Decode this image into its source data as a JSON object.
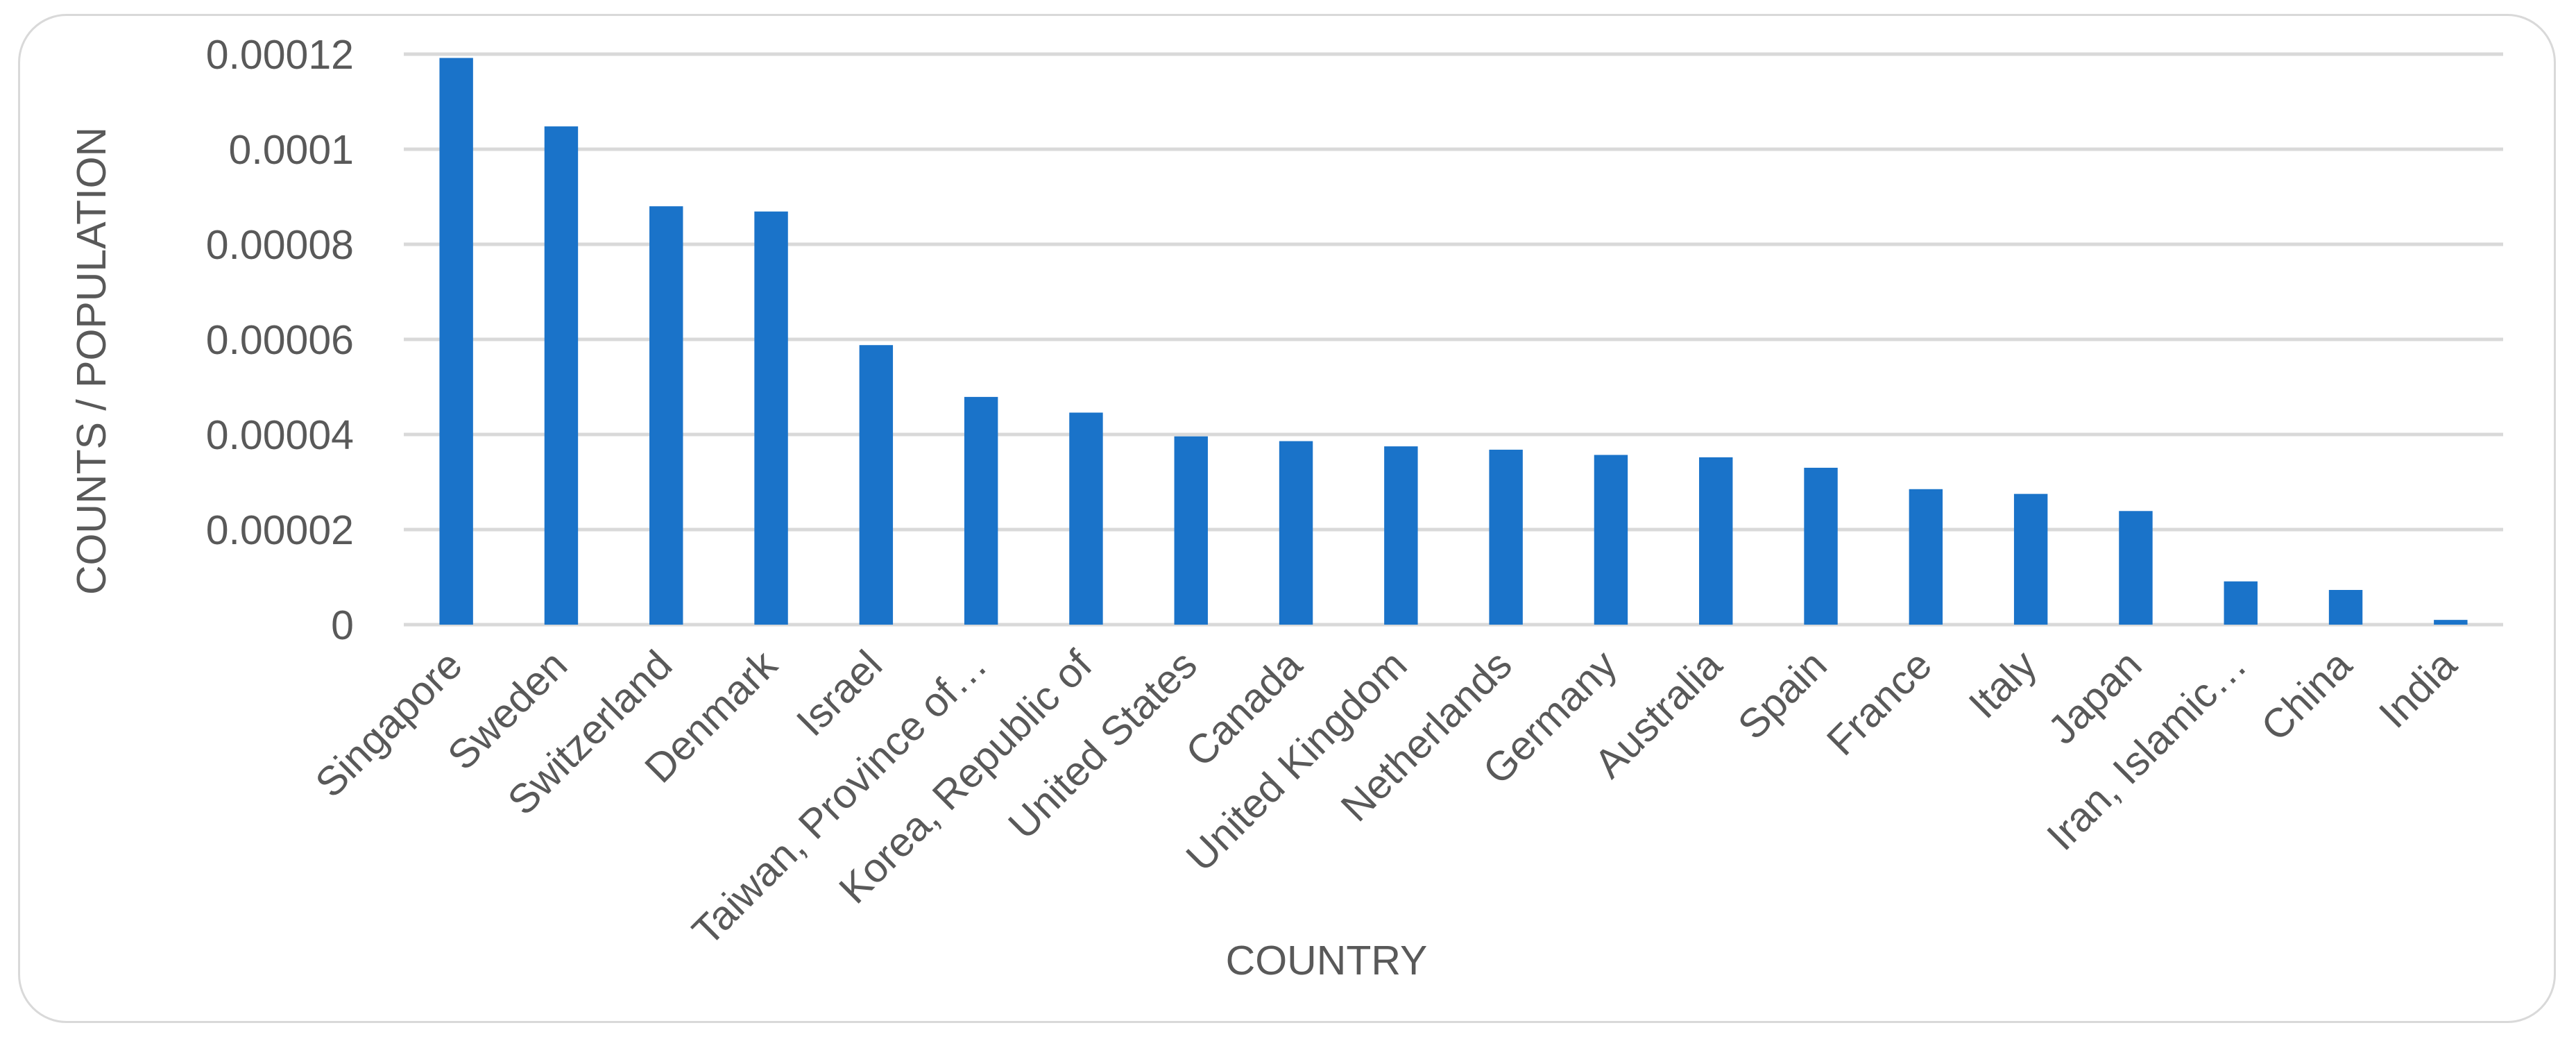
{
  "chart_data": {
    "type": "bar",
    "title": "",
    "xlabel": "COUNTRY",
    "ylabel": "COUNTS / POPULATION",
    "ylim": [
      0,
      0.00012
    ],
    "yticks": [
      0,
      2e-05,
      4e-05,
      6e-05,
      8e-05,
      0.0001,
      0.00012
    ],
    "ytick_labels": [
      "0",
      "0.00002",
      "0.00004",
      "0.00006",
      "0.00008",
      "0.0001",
      "0.00012"
    ],
    "grid": true,
    "legend": "none",
    "bar_color": "#1a73c9",
    "categories": [
      "Singapore",
      "Sweden",
      "Switzerland",
      "Denmark",
      "Israel",
      "Taiwan, Province of…",
      "Korea, Republic of",
      "United States",
      "Canada",
      "United Kingdom",
      "Netherlands",
      "Germany",
      "Australia",
      "Spain",
      "France",
      "Italy",
      "Japan",
      "Iran, Islamic…",
      "China",
      "India"
    ],
    "values": [
      0.0001192,
      0.0001048,
      8.8e-05,
      8.69e-05,
      5.88e-05,
      4.79e-05,
      4.46e-05,
      3.96e-05,
      3.86e-05,
      3.75e-05,
      3.68e-05,
      3.57e-05,
      3.52e-05,
      3.3e-05,
      2.85e-05,
      2.75e-05,
      2.39e-05,
      9.1e-06,
      7.3e-06,
      1e-06
    ]
  }
}
